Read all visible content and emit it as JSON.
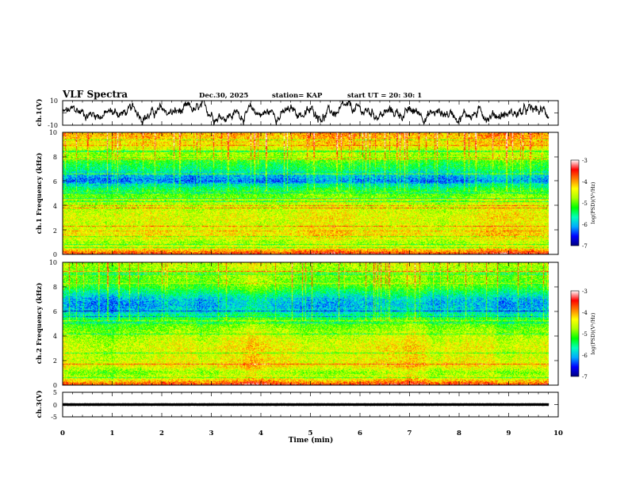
{
  "header": {
    "title": "VLF Spectra",
    "date": "Dec.30, 2025",
    "station": "station= KAP",
    "start": "start  UT =   20: 30: 1"
  },
  "chart_data": [
    {
      "type": "line",
      "panel": "ch1-waveform",
      "ylabel": "ch.1(V)",
      "ylim": [
        -10,
        10
      ],
      "yticks": [
        "10",
        "-10"
      ],
      "xlim": [
        0,
        10
      ],
      "signal": {
        "baseline_v": 0,
        "variation_v": 8
      },
      "color": "#000000"
    },
    {
      "type": "heatmap",
      "panel": "ch1-spectrogram",
      "ylabel": "ch.1 Frequency (kHz)",
      "ylim": [
        0,
        10
      ],
      "yticks": [
        "0",
        "2",
        "4",
        "6",
        "8",
        "10"
      ],
      "xlim": [
        0,
        9.8
      ],
      "profile_freq_khz": [
        0,
        0.5,
        1,
        1.5,
        2,
        2.5,
        3,
        3.5,
        4,
        4.5,
        5,
        5.5,
        6,
        6.5,
        7,
        7.5,
        8,
        8.5,
        9,
        9.5,
        10
      ],
      "profile_log_psd": [
        -3.5,
        -4.4,
        -4.7,
        -4.2,
        -4.4,
        -4.5,
        -4.4,
        -4.5,
        -4.6,
        -4.8,
        -5.0,
        -5.5,
        -6.2,
        -5.9,
        -5.4,
        -5.2,
        -4.8,
        -4.6,
        -4.3,
        -4.1,
        -4.0
      ],
      "colorbar": {
        "label": "log(PSD)(V²/Hz)",
        "min": -7,
        "max": -3,
        "ticks": [
          "-3",
          "-4",
          "-5",
          "-6",
          "-7"
        ]
      }
    },
    {
      "type": "heatmap",
      "panel": "ch2-spectrogram",
      "ylabel": "ch.2 Frequency (kHz)",
      "ylim": [
        0,
        10
      ],
      "yticks": [
        "0",
        "2",
        "4",
        "6",
        "8",
        "10"
      ],
      "xlim": [
        0,
        9.8
      ],
      "profile_freq_khz": [
        0,
        0.5,
        1,
        1.5,
        2,
        2.5,
        3,
        3.5,
        4,
        4.5,
        5,
        5.5,
        6,
        6.5,
        7,
        7.5,
        8,
        8.5,
        9,
        9.5,
        10
      ],
      "profile_log_psd": [
        -3.5,
        -4.4,
        -4.8,
        -4.3,
        -4.4,
        -4.5,
        -4.4,
        -4.5,
        -4.6,
        -4.8,
        -5.0,
        -5.3,
        -5.8,
        -6.0,
        -5.9,
        -5.5,
        -5.1,
        -4.9,
        -4.8,
        -4.7,
        -4.6
      ],
      "colorbar": {
        "label": "log(PSD)(V²/Hz)",
        "min": -7,
        "max": -3,
        "ticks": [
          "-3",
          "-4",
          "-5",
          "-6",
          "-7"
        ]
      }
    },
    {
      "type": "line",
      "panel": "ch3-waveform",
      "ylabel": "ch.3(V)",
      "ylim": [
        -5,
        5
      ],
      "yticks": [
        "5",
        "0",
        "-5"
      ],
      "xlim": [
        0,
        10
      ],
      "signal": {
        "baseline_v": 0,
        "variation_v": 0.6
      },
      "color": "#000000"
    }
  ],
  "xaxis": {
    "label": "Time  (min)",
    "ticks": [
      "0",
      "1",
      "2",
      "3",
      "4",
      "5",
      "6",
      "7",
      "8",
      "9",
      "10"
    ]
  },
  "colors": {
    "colormap": [
      "#000080",
      "#0000ff",
      "#00aaff",
      "#00ffbb",
      "#00ff00",
      "#aaff00",
      "#ffff00",
      "#ff8000",
      "#ff0000",
      "#ffffff"
    ]
  }
}
